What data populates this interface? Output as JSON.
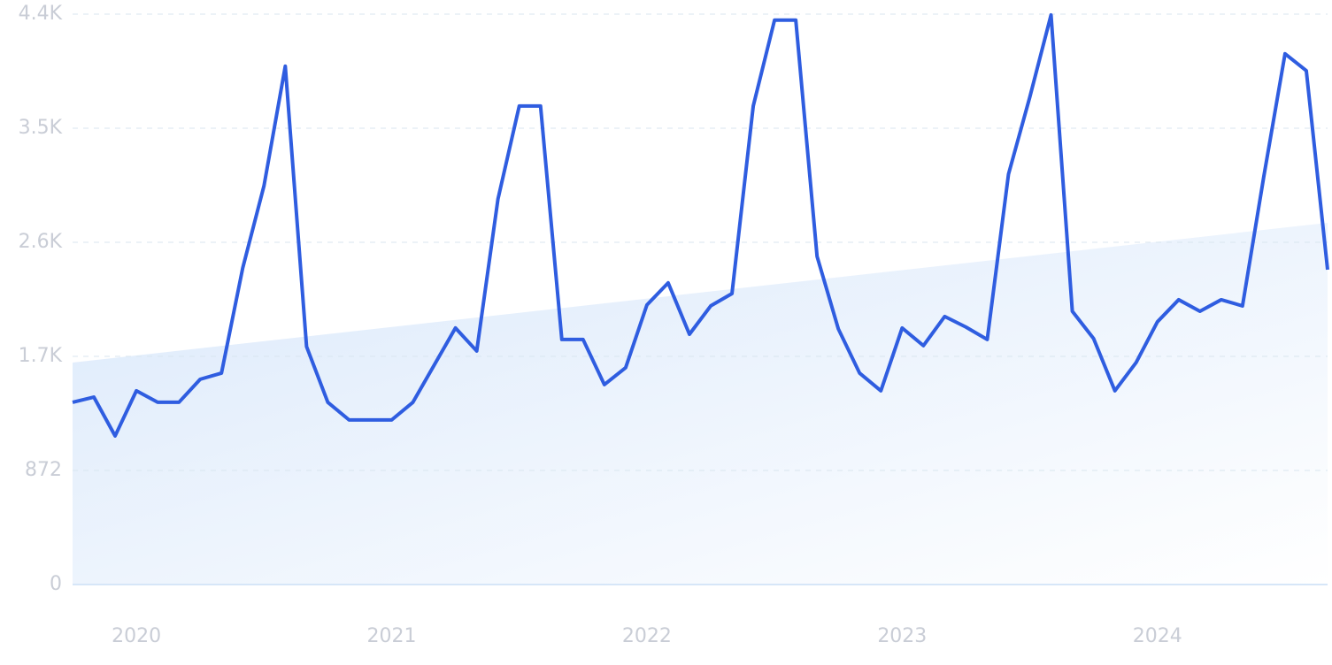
{
  "chart_data": {
    "type": "line",
    "categories": [
      null,
      null,
      null,
      "2020",
      null,
      null,
      null,
      null,
      null,
      null,
      null,
      null,
      null,
      null,
      null,
      "2021",
      null,
      null,
      null,
      null,
      null,
      null,
      null,
      null,
      null,
      null,
      null,
      "2022",
      null,
      null,
      null,
      null,
      null,
      null,
      null,
      null,
      null,
      null,
      null,
      "2023",
      null,
      null,
      null,
      null,
      null,
      null,
      null,
      null,
      null,
      null,
      null,
      "2024",
      null,
      null,
      null,
      null,
      null,
      null,
      null,
      null
    ],
    "series": [
      {
        "color": "#2f5de0",
        "values": [
          1393,
          1433,
          1136,
          1481,
          1393,
          1393,
          1569,
          1616,
          2420,
          3049,
          3962,
          1819,
          1393,
          1258,
          1258,
          1258,
          1393,
          1677,
          1961,
          1785,
          2948,
          3658,
          3658,
          1873,
          1873,
          1528,
          1657,
          2137,
          2306,
          1913,
          2130,
          2224,
          3658,
          4314,
          4314,
          2508,
          1954,
          1616,
          1481,
          1961,
          1826,
          2049,
          1968,
          1873,
          3137,
          3725,
          4354,
          2089,
          1880,
          1481,
          1697,
          2008,
          2177,
          2089,
          2177,
          2130,
          3117,
          4057,
          3928,
          2407
        ]
      }
    ],
    "trend": {
      "color": "#dbe9fb",
      "values": [
        1697,
        2765
      ]
    },
    "ylim": [
      0,
      4360
    ],
    "yticks": [
      0,
      872,
      {
        "value": 1744,
        "label": "1.7K"
      },
      {
        "value": 2616,
        "label": "2.6K"
      },
      {
        "value": 3488,
        "label": "3.5K"
      },
      {
        "value": 4360,
        "label": "4.4K"
      }
    ],
    "grid": true
  }
}
